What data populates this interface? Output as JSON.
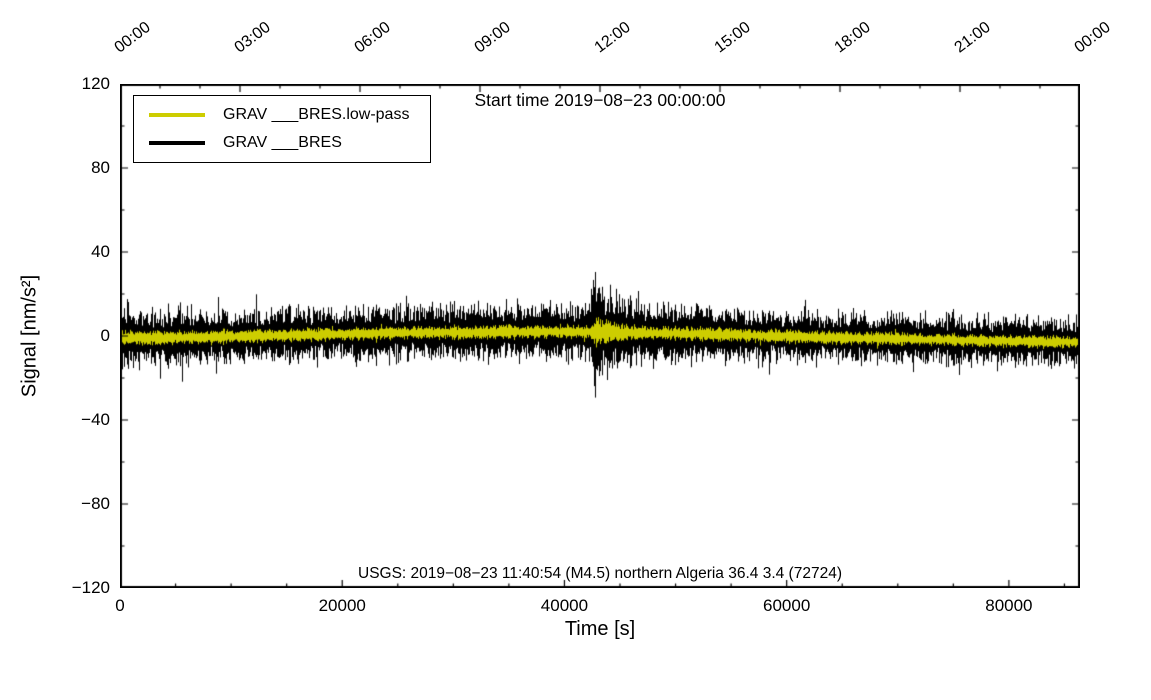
{
  "figure": {
    "background": "#ffffff"
  },
  "title": "Start time 2019−08−23 00:00:00",
  "annotation": "USGS: 2019−08−23 11:40:54 (M4.5) northern Algeria 36.4 3.4 (72724)",
  "axes": {
    "xlabel": "Time [s]",
    "ylabel": "Signal [nm/s²]"
  },
  "legend": {
    "items": [
      {
        "label": "GRAV ___BRES.low-pass",
        "color": "#cdcd00"
      },
      {
        "label": "GRAV ___BRES",
        "color": "#000000"
      }
    ]
  },
  "chart_data": {
    "type": "line",
    "title": "Start time 2019−08−23 00:00:00",
    "xlabel": "Time [s]",
    "ylabel": "Signal [nm/s²]",
    "xlim": [
      0,
      86400
    ],
    "ylim": [
      -120,
      120
    ],
    "grid": false,
    "legend_position": "top-left",
    "x_axis_bottom": {
      "tick_values": [
        0,
        20000,
        40000,
        60000,
        80000
      ],
      "tick_labels": [
        "0",
        "20000",
        "40000",
        "60000",
        "80000"
      ],
      "minor_tick_interval": 5000
    },
    "x_axis_top": {
      "tick_values": [
        0,
        10800,
        21600,
        32400,
        43200,
        54000,
        64800,
        75600,
        86400
      ],
      "tick_labels": [
        "00:00",
        "03:00",
        "06:00",
        "09:00",
        "12:00",
        "15:00",
        "18:00",
        "21:00",
        "00:00"
      ],
      "minor_tick_interval": 3600,
      "label_rotation_deg": -37
    },
    "y_axis": {
      "tick_values": [
        -120,
        -80,
        -40,
        0,
        40,
        80,
        120
      ],
      "tick_labels": [
        "−120",
        "−80",
        "−40",
        "0",
        "40",
        "80",
        "120"
      ],
      "minor_tick_interval": 20
    },
    "series": [
      {
        "name": "GRAV ___BRES",
        "color": "#000000",
        "style": "noise-band",
        "draw_order": 1,
        "mean_keypoints": [
          [
            0,
            -1
          ],
          [
            8000,
            -0.5
          ],
          [
            16000,
            0.5
          ],
          [
            26000,
            1.5
          ],
          [
            36000,
            2
          ],
          [
            43200,
            2
          ],
          [
            52000,
            1
          ],
          [
            62000,
            -0.5
          ],
          [
            72000,
            -1.5
          ],
          [
            80000,
            -2.5
          ],
          [
            86400,
            -3
          ]
        ],
        "amplitude_keypoints": [
          [
            0,
            11
          ],
          [
            1500,
            9.5
          ],
          [
            20000,
            9
          ],
          [
            40000,
            9.5
          ],
          [
            42300,
            10
          ],
          [
            42800,
            21
          ],
          [
            43500,
            15
          ],
          [
            45000,
            12
          ],
          [
            48000,
            10.5
          ],
          [
            55000,
            9
          ],
          [
            70000,
            8.5
          ],
          [
            86400,
            8
          ]
        ]
      },
      {
        "name": "GRAV ___BRES.low-pass",
        "color": "#cdcd00",
        "style": "noise-band",
        "draw_order": 2,
        "mean_keypoints": [
          [
            0,
            -1
          ],
          [
            8000,
            -0.5
          ],
          [
            16000,
            0.5
          ],
          [
            26000,
            1.5
          ],
          [
            36000,
            2
          ],
          [
            43200,
            2
          ],
          [
            52000,
            1
          ],
          [
            62000,
            -0.5
          ],
          [
            72000,
            -1.5
          ],
          [
            80000,
            -2.5
          ],
          [
            86400,
            -3
          ]
        ],
        "amplitude_keypoints": [
          [
            0,
            2.4
          ],
          [
            20000,
            2.2
          ],
          [
            42400,
            2.3
          ],
          [
            42900,
            5.5
          ],
          [
            43600,
            4
          ],
          [
            45000,
            2.8
          ],
          [
            48000,
            2.3
          ],
          [
            86400,
            2
          ]
        ]
      }
    ],
    "event": {
      "catalog": "USGS",
      "time": "2019−08−23 11:40:54",
      "magnitude": "M4.5",
      "region": "northern Algeria",
      "lat": 36.4,
      "lon": 3.4,
      "id": "72724"
    }
  }
}
